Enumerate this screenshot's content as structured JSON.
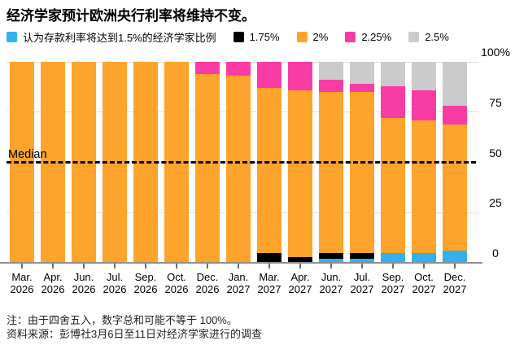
{
  "title": "经济学家预计欧洲央行利率将维持不变。",
  "chart_data": {
    "type": "bar",
    "stacked": true,
    "title": "经济学家预计欧洲央行利率将维持不变。",
    "categories": [
      "Mar. 2026",
      "Apr. 2026",
      "Jun. 2026",
      "Jul. 2026",
      "Sep. 2026",
      "Oct. 2026",
      "Dec. 2026",
      "Jan. 2027",
      "Mar. 2027",
      "Apr. 2027",
      "Jun. 2027",
      "Jul. 2027",
      "Sep. 2027",
      "Oct. 2027",
      "Dec. 2027"
    ],
    "series": [
      {
        "name": "1.5%",
        "legend_label": "认为存款利率将达到1.5%的经济学家比例",
        "color": "#33B1EC",
        "values": [
          0,
          0,
          0,
          0,
          0,
          0,
          0,
          0,
          0,
          0,
          2,
          2,
          5,
          5,
          6
        ]
      },
      {
        "name": "1.75%",
        "legend_label": "1.75%",
        "color": "#000000",
        "values": [
          0,
          0,
          0,
          0,
          0,
          0,
          0,
          0,
          5,
          3,
          3,
          3,
          0,
          0,
          0
        ]
      },
      {
        "name": "2%",
        "legend_label": "2%",
        "color": "#FEA32B",
        "values": [
          100,
          100,
          100,
          100,
          100,
          100,
          94,
          93,
          82,
          83,
          80,
          80,
          67,
          66,
          63
        ]
      },
      {
        "name": "2.25%",
        "legend_label": "2.25%",
        "color": "#F73CA6",
        "values": [
          0,
          0,
          0,
          0,
          0,
          0,
          6,
          7,
          13,
          14,
          6,
          4,
          16,
          15,
          9
        ]
      },
      {
        "name": "2.5%",
        "legend_label": "2.5%",
        "color": "#CBCBCB",
        "values": [
          0,
          0,
          0,
          0,
          0,
          0,
          0,
          0,
          0,
          0,
          9,
          11,
          12,
          14,
          22
        ]
      }
    ],
    "ylim": [
      0,
      100
    ],
    "yticks": [
      {
        "value": 0,
        "label": "0"
      },
      {
        "value": 25,
        "label": "25"
      },
      {
        "value": 50,
        "label": "50"
      },
      {
        "value": 75,
        "label": "75"
      },
      {
        "value": 100,
        "label": "100%"
      }
    ],
    "median_label": "Median",
    "median_value": 50,
    "grid": true,
    "legend_position": "top",
    "unit": "%"
  },
  "footnotes": {
    "note": "注：由于四舍五入，数字总和可能不等于 100%。",
    "source": "资料来源：彭博社3月6日至11日对经济学家进行的调查"
  }
}
